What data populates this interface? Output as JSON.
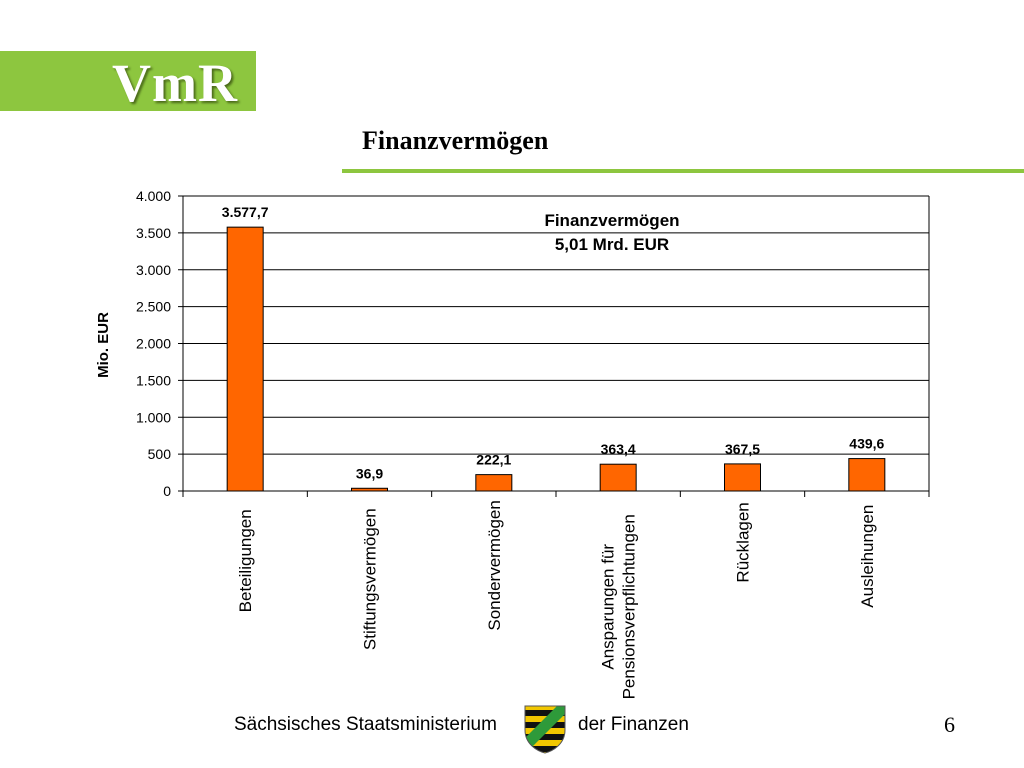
{
  "slide": {
    "logo": "VmR",
    "title": "Finanzvermögen",
    "footer_left": "Sächsisches Staatsministerium",
    "footer_right": "der Finanzen",
    "page_number": "6"
  },
  "colors": {
    "logo_green": "#8dc63f",
    "bar_fill": "#ff6600",
    "bar_stroke": "#000000",
    "grid": "#000000"
  },
  "chart_data": {
    "type": "bar",
    "title": "Finanzvermögen",
    "subtitle": "5,01 Mrd. EUR",
    "ylabel": "Mio. EUR",
    "xlabel": "",
    "ylim": [
      0,
      4000
    ],
    "grid": true,
    "y_ticks": [
      0,
      500,
      1000,
      1500,
      2000,
      2500,
      3000,
      3500,
      4000
    ],
    "y_tick_labels": [
      "0",
      "500",
      "1.000",
      "1.500",
      "2.000",
      "2.500",
      "3.000",
      "3.500",
      "4.000"
    ],
    "categories": [
      [
        "Beteiligungen"
      ],
      [
        "Stiftungsvermögen"
      ],
      [
        "Sondervermögen"
      ],
      [
        "Ansparungen für",
        "Pensionsverpflichtungen"
      ],
      [
        "Rücklagen"
      ],
      [
        "Ausleihungen"
      ]
    ],
    "values": [
      3577.7,
      36.9,
      222.1,
      363.4,
      367.5,
      439.6
    ],
    "value_labels": [
      "3.577,7",
      "36,9",
      "222,1",
      "363,4",
      "367,5",
      "439,6"
    ]
  }
}
